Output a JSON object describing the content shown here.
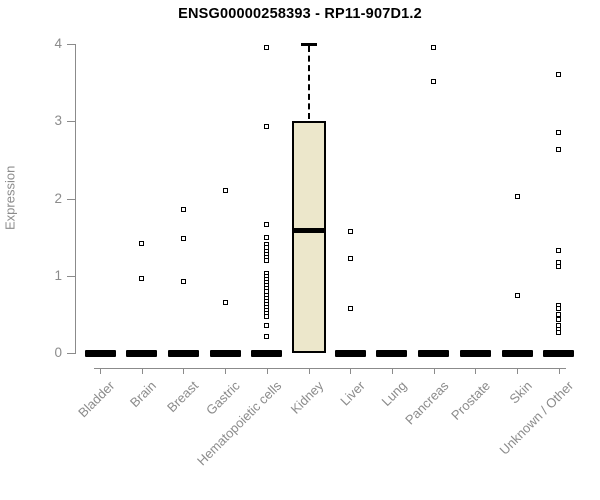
{
  "chart_data": {
    "type": "boxplot",
    "title": "ENSG00000258393 - RP11-907D1.2",
    "ylabel": "Expression",
    "xlabel": "",
    "ylim": [
      0,
      4
    ],
    "yticks": [
      0,
      1,
      2,
      3,
      4
    ],
    "grid": false,
    "legend": false,
    "categories": [
      "Bladder",
      "Brain",
      "Breast",
      "Gastric",
      "Hematopoietic cells",
      "Kidney",
      "Liver",
      "Lung",
      "Pancreas",
      "Prostate",
      "Skin",
      "Unknown / Other"
    ],
    "boxes": [
      {
        "category": "Bladder",
        "whisker_low": 0,
        "q1": 0,
        "median": 0,
        "q3": 0,
        "whisker_high": 0,
        "outliers": []
      },
      {
        "category": "Brain",
        "whisker_low": 0,
        "q1": 0,
        "median": 0,
        "q3": 0,
        "whisker_high": 0,
        "outliers": [
          1.42,
          0.97
        ]
      },
      {
        "category": "Breast",
        "whisker_low": 0,
        "q1": 0,
        "median": 0,
        "q3": 0,
        "whisker_high": 0,
        "outliers": [
          1.86,
          1.48,
          0.93
        ]
      },
      {
        "category": "Gastric",
        "whisker_low": 0,
        "q1": 0,
        "median": 0,
        "q3": 0,
        "whisker_high": 0,
        "outliers": [
          2.11,
          0.65
        ]
      },
      {
        "category": "Hematopoietic cells",
        "whisker_low": 0,
        "q1": 0,
        "median": 0,
        "q3": 0,
        "whisker_high": 0,
        "outliers": [
          3.95,
          2.93,
          1.66,
          1.5,
          1.4,
          1.36,
          1.32,
          1.28,
          1.24,
          1.2,
          1.03,
          0.99,
          0.95,
          0.91,
          0.87,
          0.83,
          0.79,
          0.75,
          0.71,
          0.67,
          0.63,
          0.59,
          0.55,
          0.51,
          0.47,
          0.36,
          0.22
        ]
      },
      {
        "category": "Kidney",
        "whisker_low": 0,
        "q1": 0,
        "median": 1.59,
        "q3": 3.0,
        "whisker_high": 4.0,
        "outliers": []
      },
      {
        "category": "Liver",
        "whisker_low": 0,
        "q1": 0,
        "median": 0,
        "q3": 0,
        "whisker_high": 0,
        "outliers": [
          1.57,
          1.22,
          0.58
        ]
      },
      {
        "category": "Lung",
        "whisker_low": 0,
        "q1": 0,
        "median": 0,
        "q3": 0,
        "whisker_high": 0,
        "outliers": []
      },
      {
        "category": "Pancreas",
        "whisker_low": 0,
        "q1": 0,
        "median": 0,
        "q3": 0,
        "whisker_high": 0,
        "outliers": [
          3.96,
          3.51
        ]
      },
      {
        "category": "Prostate",
        "whisker_low": 0,
        "q1": 0,
        "median": 0,
        "q3": 0,
        "whisker_high": 0,
        "outliers": []
      },
      {
        "category": "Skin",
        "whisker_low": 0,
        "q1": 0,
        "median": 0,
        "q3": 0,
        "whisker_high": 0,
        "outliers": [
          2.03,
          0.75
        ]
      },
      {
        "category": "Unknown / Other",
        "whisker_low": 0,
        "q1": 0,
        "median": 0,
        "q3": 0,
        "whisker_high": 0,
        "outliers": [
          3.6,
          2.85,
          2.63,
          1.33,
          1.17,
          1.12,
          0.62,
          0.57,
          0.5,
          0.44,
          0.35,
          0.3,
          0.26
        ]
      }
    ],
    "colors": {
      "box_fill": "#ece7cb",
      "box_border": "#000000",
      "median": "#000000",
      "whisker": "#000000",
      "outlier_fill": "#ffffff",
      "axis": "#8b8b8b",
      "tick_label": "#8b8b8b",
      "title": "#000000"
    }
  }
}
